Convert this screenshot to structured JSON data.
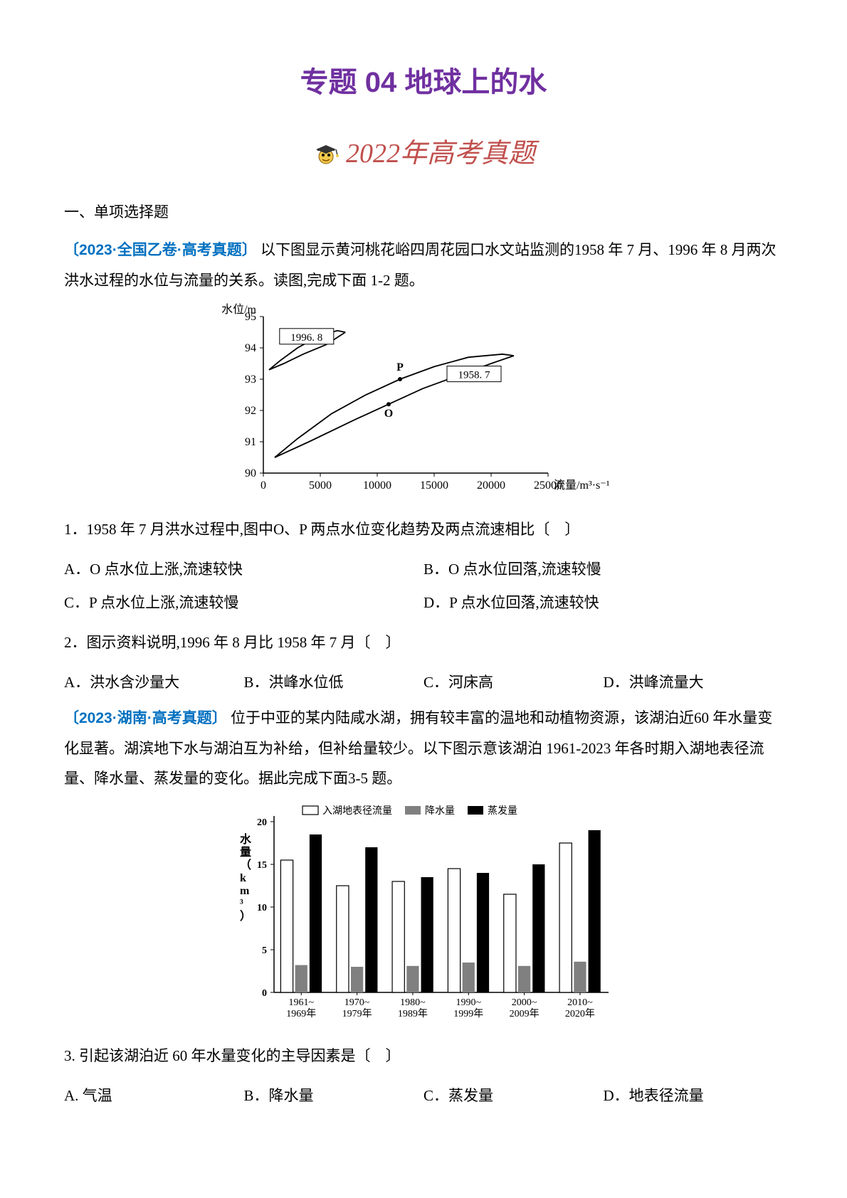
{
  "title": "专题 04 地球上的水",
  "banner": {
    "text": "2022年高考真题"
  },
  "section_heading": "一、单项选择题",
  "passage1": {
    "tag": "〔2023·全国乙卷·高考真题〕",
    "intro": "以下图显示黄河桃花峪四周花园口水文站监测的1958 年 7 月、1996 年 8 月两次洪水过程的水位与流量的关系。读图,完成下面 1-2 题。",
    "chart": {
      "type": "line",
      "x_label": "流量/m³·s⁻¹",
      "y_label": "水位/m",
      "y_lim": [
        90,
        95
      ],
      "y_ticks": [
        90,
        91,
        92,
        93,
        94,
        95
      ],
      "x_lim": [
        0,
        25000
      ],
      "x_ticks": [
        0,
        5000,
        10000,
        15000,
        20000,
        25000
      ],
      "series": [
        {
          "name": "1996.8",
          "label": "1996. 8",
          "label_pos": [
            3800,
            94.3
          ],
          "color": "#000000",
          "points_upper": [
            [
              500,
              93.3
            ],
            [
              1500,
              93.6
            ],
            [
              3000,
              94.0
            ],
            [
              5000,
              94.4
            ],
            [
              6500,
              94.55
            ],
            [
              7200,
              94.5
            ]
          ],
          "points_lower": [
            [
              500,
              93.3
            ],
            [
              1800,
              93.5
            ],
            [
              3500,
              93.8
            ],
            [
              5500,
              94.1
            ],
            [
              7200,
              94.5
            ]
          ]
        },
        {
          "name": "1958.7",
          "label": "1958. 7",
          "label_pos": [
            18500,
            93.1
          ],
          "color": "#000000",
          "points_upper": [
            [
              1000,
              90.5
            ],
            [
              3000,
              91.1
            ],
            [
              6000,
              91.9
            ],
            [
              9000,
              92.5
            ],
            [
              12000,
              93.0
            ],
            [
              15000,
              93.4
            ],
            [
              18000,
              93.7
            ],
            [
              21000,
              93.8
            ],
            [
              22000,
              93.75
            ]
          ],
          "points_lower": [
            [
              1000,
              90.5
            ],
            [
              4000,
              91.0
            ],
            [
              8000,
              91.7
            ],
            [
              11000,
              92.2
            ],
            [
              14000,
              92.7
            ],
            [
              17000,
              93.1
            ],
            [
              20000,
              93.5
            ],
            [
              22000,
              93.75
            ]
          ]
        }
      ],
      "markers": [
        {
          "label": "P",
          "x": 12000,
          "y": 93.0,
          "label_dy": -12
        },
        {
          "label": "O",
          "x": 11000,
          "y": 92.2,
          "label_dy": 18
        }
      ],
      "axis_color": "#000000",
      "tick_fontsize": 16,
      "label_fontsize": 16,
      "background": "#ffffff"
    },
    "q1": {
      "stem": "1．1958 年 7 月洪水过程中,图中O、P 两点水位变化趋势及两点流速相比〔　〕",
      "opts": {
        "A": "A．O 点水位上涨,流速较快",
        "B": "B．O 点水位回落,流速较慢",
        "C": "C．P 点水位上涨,流速较慢",
        "D": "D．P 点水位回落,流速较快"
      }
    },
    "q2": {
      "stem": "2．图示资料说明,1996 年 8 月比 1958 年 7 月〔　〕",
      "opts": {
        "A": "A．洪水含沙量大",
        "B": "B．洪峰水位低",
        "C": "C．河床高",
        "D": "D．洪峰流量大"
      }
    }
  },
  "passage2": {
    "tag": "〔2023·湖南·高考真题〕",
    "intro": "位于中亚的某内陆咸水湖，拥有较丰富的温地和动植物资源，该湖泊近60  年水量变化显著。湖滨地下水与湖泊互为补给，但补给量较少。以下图示意该湖泊 1961-2023 年各时期入湖地表径流量、降水量、蒸发量的变化。据此完成下面3-5 题。",
    "chart": {
      "type": "bar",
      "y_label": "水量（km³）",
      "y_lim": [
        0,
        20
      ],
      "y_ticks": [
        0,
        5,
        10,
        15,
        20
      ],
      "categories": [
        "1961~\n1969年",
        "1970~\n1979年",
        "1980~\n1989年",
        "1990~\n1999年",
        "2000~\n2009年",
        "2010~\n2020年"
      ],
      "legend": [
        {
          "label": "入湖地表径流量",
          "swatch": "outline",
          "color": "#ffffff",
          "border": "#000000"
        },
        {
          "label": "降水量",
          "swatch": "fill",
          "color": "#808080"
        },
        {
          "label": "蒸发量",
          "swatch": "fill",
          "color": "#000000"
        }
      ],
      "series": {
        "runoff": {
          "color": "#ffffff",
          "border": "#000000",
          "values": [
            15.5,
            12.5,
            13.0,
            14.5,
            11.5,
            17.5
          ]
        },
        "precip": {
          "color": "#808080",
          "values": [
            3.2,
            3.0,
            3.1,
            3.5,
            3.1,
            3.6
          ]
        },
        "evap": {
          "color": "#000000",
          "values": [
            18.5,
            17.0,
            13.5,
            14.0,
            15.0,
            19.0
          ]
        }
      },
      "bar_width": 0.22,
      "axis_color": "#000000",
      "tick_fontsize": 14,
      "label_fontsize": 16,
      "background": "#ffffff"
    },
    "q3": {
      "stem": "3.  引起该湖泊近 60 年水量变化的主导因素是〔　〕",
      "opts": {
        "A": "A.  气温",
        "B": "B．降水量",
        "C": "C．蒸发量",
        "D": "D．地表径流量"
      }
    }
  }
}
